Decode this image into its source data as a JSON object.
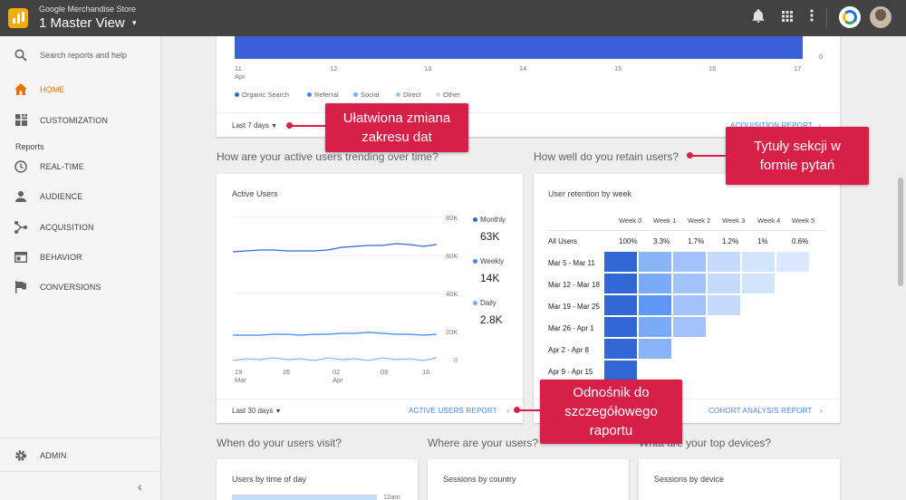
{
  "topbar": {
    "account": "Google Merchandise Store",
    "view": "1 Master View",
    "view_caret": "▾",
    "icons": [
      "bell-icon",
      "apps-grid-icon",
      "more-vert-icon",
      "google-circle-icon",
      "user-avatar"
    ]
  },
  "sidebar": {
    "search_placeholder": "Search reports and help",
    "section_reports": "Reports",
    "items": [
      {
        "label": "HOME",
        "icon": "home-icon",
        "active": true
      },
      {
        "label": "CUSTOMIZATION",
        "icon": "dashboard-icon",
        "active": false
      },
      {
        "label": "REAL-TIME",
        "icon": "clock-icon",
        "active": false
      },
      {
        "label": "AUDIENCE",
        "icon": "person-icon",
        "active": false
      },
      {
        "label": "ACQUISITION",
        "icon": "acquisition-icon",
        "active": false
      },
      {
        "label": "BEHAVIOR",
        "icon": "behavior-icon",
        "active": false
      },
      {
        "label": "CONVERSIONS",
        "icon": "flag-icon",
        "active": false
      }
    ],
    "admin": "ADMIN",
    "collapse": "‹"
  },
  "top_card": {
    "x_ticks": [
      "11",
      "12",
      "13",
      "14",
      "15",
      "16",
      "17"
    ],
    "x_first_month": "Apr",
    "y_zero": "0",
    "legend": [
      {
        "name": "Organic Search",
        "color": "#3367d6"
      },
      {
        "name": "Referral",
        "color": "#4285f4"
      },
      {
        "name": "Social",
        "color": "#7baaf7"
      },
      {
        "name": "Direct",
        "color": "#a1c2fa"
      },
      {
        "name": "Other",
        "color": "#c6dafc"
      }
    ],
    "date_range": "Last 7 days",
    "report_link": "ACQUISITION REPORT"
  },
  "questions": {
    "active_users": "How are your active users trending over time?",
    "retain": "How well do you retain users?",
    "when_visit": "When do your users visit?",
    "where": "Where are your users?",
    "devices": "What are your top devices?"
  },
  "active_users": {
    "title": "Active Users",
    "y_ticks": [
      "80K",
      "60K",
      "40K",
      "20K",
      "0"
    ],
    "x_ticks": [
      "19",
      "26",
      "02",
      "09",
      "16"
    ],
    "x_months": [
      "Mar",
      "",
      "Apr",
      "",
      ""
    ],
    "metrics": [
      {
        "name": "Monthly",
        "value": "63K",
        "color": "#3367d6"
      },
      {
        "name": "Weekly",
        "value": "14K",
        "color": "#4285f4"
      },
      {
        "name": "Daily",
        "value": "2.8K",
        "color": "#7baaf7"
      }
    ],
    "date_range": "Last 30 days",
    "report_link": "ACTIVE USERS REPORT"
  },
  "retention": {
    "title": "User retention by week",
    "weeks": [
      "Week 0",
      "Week 1",
      "Week 2",
      "Week 3",
      "Week 4",
      "Week 5"
    ],
    "all_users_label": "All Users",
    "all_users": [
      "100%",
      "3.3%",
      "1.7%",
      "1.2%",
      "1%",
      "0.6%"
    ],
    "rows": [
      {
        "label": "Mar 5 - Mar 11",
        "cells": 6
      },
      {
        "label": "Mar 12 - Mar 18",
        "cells": 5
      },
      {
        "label": "Mar 19 - Mar 25",
        "cells": 4
      },
      {
        "label": "Mar 26 - Apr 1",
        "cells": 3
      },
      {
        "label": "Apr 2 - Apr 8",
        "cells": 2
      },
      {
        "label": "Apr 9 - Apr 15",
        "cells": 1
      }
    ],
    "report_link": "COHORT ANALYSIS REPORT"
  },
  "bottom_cards": {
    "time_of_day": "Users by time of day",
    "time_label": "12am",
    "country": "Sessions by country",
    "device": "Sessions by device"
  },
  "callouts": {
    "date_range": [
      "Ułatwiona zmiana",
      "zakresu dat"
    ],
    "section_titles": [
      "Tytuły sekcji w",
      "formie pytań"
    ],
    "report_link": [
      "Odnośnik do",
      "szczegółowego",
      "raportu"
    ]
  },
  "colors": {
    "accent": "#d81f48",
    "active_nav": "#e8710a",
    "chart_blue": "#3b5fd9"
  }
}
